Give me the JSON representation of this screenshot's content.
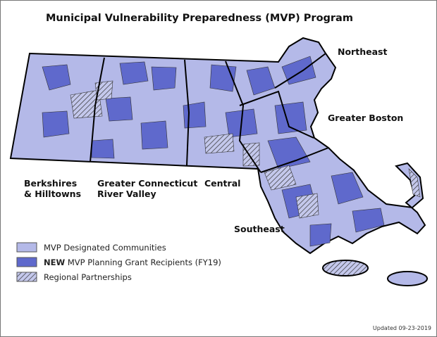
{
  "title": "Municipal Vulnerability Preparedness (MVP) Program",
  "regions": [
    {
      "lines": [
        "Northeast"
      ]
    },
    {
      "lines": [
        "Greater Boston"
      ]
    },
    {
      "lines": [
        "Berkshires",
        "& Hilltowns"
      ]
    },
    {
      "lines": [
        "Greater Connecticut",
        "River Valley"
      ]
    },
    {
      "lines": [
        "Central"
      ]
    },
    {
      "lines": [
        "Southeast"
      ]
    }
  ],
  "legend": [
    {
      "label": "MVP Designated Communities"
    },
    {
      "prefix": "NEW",
      "label": "MVP Planning Grant Recipients (FY19)"
    },
    {
      "label": "Regional Partnerships"
    }
  ],
  "footer": "Updated 09-23-2019"
}
